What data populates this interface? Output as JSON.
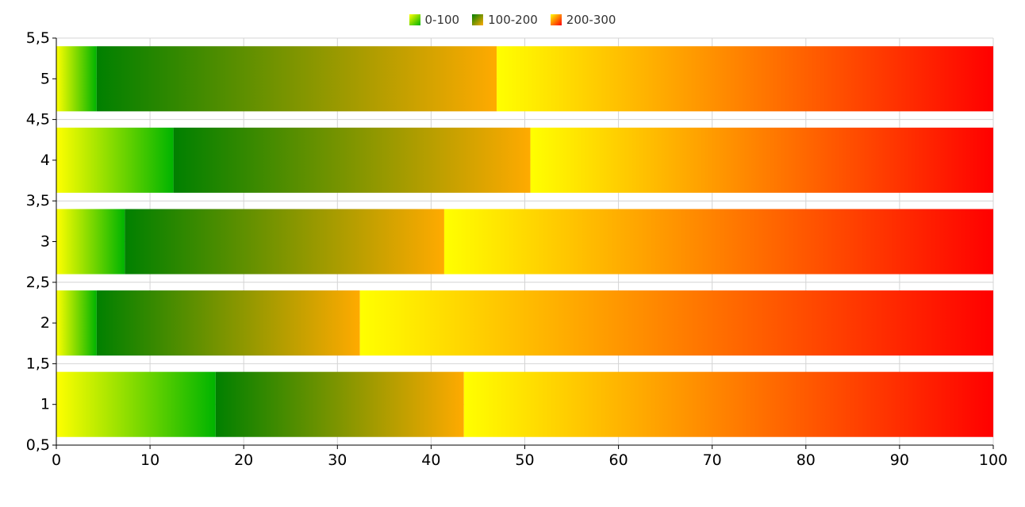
{
  "chart_data": {
    "type": "bar",
    "orientation": "horizontal",
    "stacked": true,
    "percent_stacked": true,
    "categories": [
      "1",
      "2",
      "3",
      "4",
      "5"
    ],
    "series": [
      {
        "name": "0-100",
        "values": [
          17,
          4.3,
          7.3,
          12.5,
          4.3
        ],
        "gradient": [
          "#ffff00",
          "#00b400"
        ]
      },
      {
        "name": "100-200",
        "values": [
          26.5,
          28.1,
          34.1,
          38.1,
          42.7
        ],
        "gradient": [
          "#008000",
          "#ffaa00"
        ]
      },
      {
        "name": "200-300",
        "values": [
          56.5,
          67.6,
          58.6,
          49.4,
          53
        ],
        "gradient": [
          "#ffff00",
          "#ff0000"
        ]
      }
    ],
    "xlim": [
      0,
      100
    ],
    "x_ticks": [
      "0",
      "10",
      "20",
      "30",
      "40",
      "50",
      "60",
      "70",
      "80",
      "90",
      "100"
    ],
    "ylim": [
      0.5,
      5.5
    ],
    "y_ticks": [
      "0,5",
      "1",
      "1,5",
      "2",
      "2,5",
      "3",
      "3,5",
      "4",
      "4,5",
      "5",
      "5,5"
    ],
    "grid": true,
    "legend_position": "top-center",
    "title": "",
    "xlabel": "",
    "ylabel": ""
  }
}
